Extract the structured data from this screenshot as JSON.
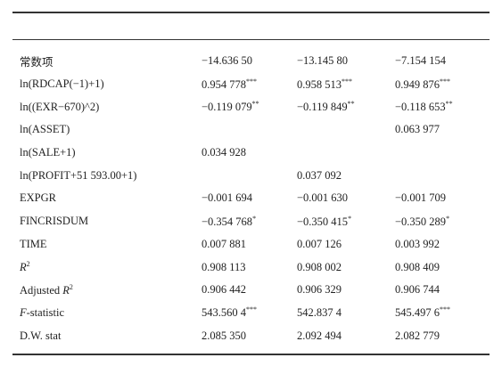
{
  "table": {
    "rows": [
      [
        {
          "text": "常数项"
        },
        {
          "text": "−14.636 50"
        },
        {
          "text": "−13.145 80"
        },
        {
          "text": "−7.154 154"
        }
      ],
      [
        {
          "text": "ln(RDCAP(−1)+1)"
        },
        {
          "text": "0.954 778",
          "sup": "***"
        },
        {
          "text": "0.958 513",
          "sup": "***"
        },
        {
          "text": "0.949 876",
          "sup": "***"
        }
      ],
      [
        {
          "text": "ln((EXR−670)^2)"
        },
        {
          "text": "−0.119 079",
          "sup": "**"
        },
        {
          "text": "−0.119 849",
          "sup": "**"
        },
        {
          "text": "−0.118 653",
          "sup": "**"
        }
      ],
      [
        {
          "text": "ln(ASSET)"
        },
        null,
        null,
        {
          "text": "0.063 977"
        }
      ],
      [
        {
          "text": "ln(SALE+1)"
        },
        {
          "text": "0.034 928"
        },
        null,
        null
      ],
      [
        {
          "text": "ln(PROFIT+51 593.00+1)"
        },
        null,
        {
          "text": "0.037 092"
        },
        null
      ],
      [
        {
          "text": "EXPGR"
        },
        {
          "text": "−0.001 694"
        },
        {
          "text": "−0.001 630"
        },
        {
          "text": "−0.001 709"
        }
      ],
      [
        {
          "text": "FINCRISDUM"
        },
        {
          "text": "−0.354 768",
          "sup": "*"
        },
        {
          "text": "−0.350 415",
          "sup": "*"
        },
        {
          "text": "−0.350 289",
          "sup": "*"
        }
      ],
      [
        {
          "text": "TIME"
        },
        {
          "text": "0.007 881"
        },
        {
          "text": "0.007 126"
        },
        {
          "text": "0.003 992"
        }
      ],
      [
        {
          "em": "R",
          "sup": "2"
        },
        {
          "text": "0.908 113"
        },
        {
          "text": "0.908 002"
        },
        {
          "text": "0.908 409"
        }
      ],
      [
        {
          "text": "Adjusted ",
          "em": "R",
          "sup": "2"
        },
        {
          "text": "0.906 442"
        },
        {
          "text": "0.906 329"
        },
        {
          "text": "0.906 744"
        }
      ],
      [
        {
          "em": "F",
          "text": "-statistic"
        },
        {
          "text": "543.560 4",
          "sup": "***"
        },
        {
          "text": "542.837 4"
        },
        {
          "text": "545.497 6",
          "sup": "***"
        }
      ],
      [
        {
          "text": "D.W.  stat"
        },
        {
          "text": "2.085 350"
        },
        {
          "text": "2.092 494"
        },
        {
          "text": "2.082 779"
        }
      ]
    ]
  }
}
